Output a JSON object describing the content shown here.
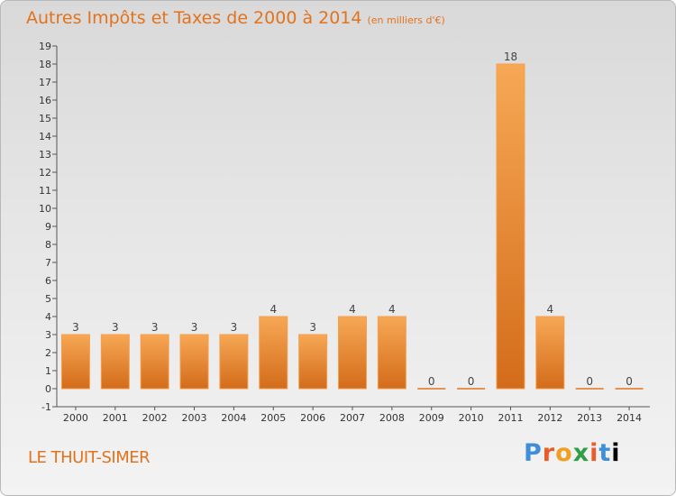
{
  "header": {
    "title": "Autres Impôts et Taxes de 2000 à 2014",
    "unit": "(en milliers d'€)"
  },
  "footer": {
    "commune": "LE THUIT-SIMER",
    "logo_text": "Proxiti"
  },
  "colors": {
    "accent": "#e2731e",
    "bar_light": "#f7a855",
    "bar_dark": "#d36c1a"
  },
  "chart_data": {
    "type": "bar",
    "title": "Autres Impôts et Taxes de 2000 à 2014",
    "subtitle": "(en milliers d'€)",
    "categories": [
      "2000",
      "2001",
      "2002",
      "2003",
      "2004",
      "2005",
      "2006",
      "2007",
      "2008",
      "2009",
      "2010",
      "2011",
      "2012",
      "2013",
      "2014"
    ],
    "values": [
      3,
      3,
      3,
      3,
      3,
      4,
      3,
      4,
      4,
      0,
      0,
      18,
      4,
      0,
      0
    ],
    "data_labels": [
      "3",
      "3",
      "3",
      "3",
      "3",
      "4",
      "3",
      "4",
      "4",
      "0",
      "0",
      "18",
      "4",
      "0",
      "0"
    ],
    "ylim": [
      -1,
      19
    ],
    "yticks": [
      -1,
      0,
      1,
      2,
      3,
      4,
      5,
      6,
      7,
      8,
      9,
      10,
      11,
      12,
      13,
      14,
      15,
      16,
      17,
      18,
      19
    ],
    "grid": false
  }
}
